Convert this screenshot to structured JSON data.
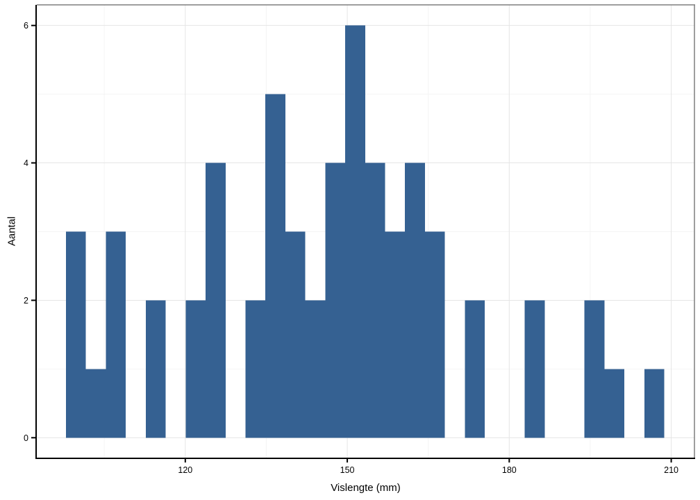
{
  "chart_data": {
    "type": "bar",
    "subtype": "histogram",
    "title": "",
    "xlabel": "Vislengte (mm)",
    "ylabel": "Aantal",
    "bins": {
      "start": 97.9,
      "width": 3.694
    },
    "counts": [
      3,
      1,
      3,
      0,
      2,
      0,
      2,
      4,
      0,
      2,
      5,
      3,
      2,
      4,
      6,
      4,
      3,
      4,
      3,
      0,
      2,
      0,
      0,
      2,
      0,
      0,
      2,
      1,
      0,
      1
    ],
    "x_axis": {
      "ticks": [
        120,
        150,
        180,
        210
      ],
      "minor_ticks": [
        105,
        135,
        165,
        195
      ],
      "domain": [
        92.5,
        214.3
      ]
    },
    "y_axis": {
      "ticks": [
        0,
        2,
        4,
        6
      ],
      "minor_ticks": [
        1,
        3,
        5
      ],
      "domain": [
        -0.3,
        6.3
      ]
    },
    "grid": "on",
    "legend_position": "none",
    "colors": {
      "bar_fill": "#356192",
      "panel_background": "#ffffff",
      "panel_border": "#7e7e7e",
      "axis_line": "#000000",
      "tick_mark": "#000000",
      "grid_major": "#e5e5e5",
      "grid_minor": "#f4f4f4",
      "text": "#000000"
    }
  }
}
